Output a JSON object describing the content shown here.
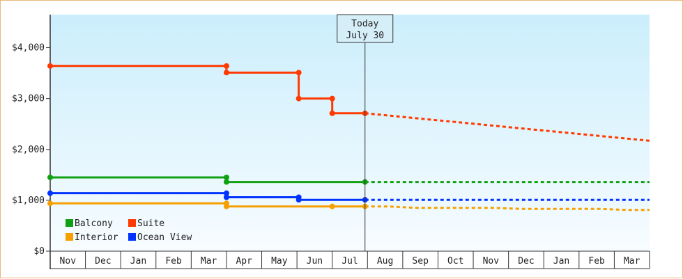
{
  "chart_data": {
    "type": "line",
    "yticks": [
      {
        "value": 0,
        "label": "$0"
      },
      {
        "value": 1000,
        "label": "$1,000"
      },
      {
        "value": 2000,
        "label": "$2,000"
      },
      {
        "value": 3000,
        "label": "$3,000"
      },
      {
        "value": 4000,
        "label": "$4,000"
      }
    ],
    "ylim": [
      0,
      4650
    ],
    "x_months": [
      "Nov",
      "Dec",
      "Jan",
      "Feb",
      "Mar",
      "Apr",
      "May",
      "Jun",
      "Jul",
      "Aug",
      "Sep",
      "Oct",
      "Nov",
      "Dec",
      "Jan",
      "Feb",
      "Mar"
    ],
    "xlim": [
      0,
      17
    ],
    "today": {
      "x": 8.93,
      "title": "Today",
      "date": "July 30"
    },
    "legend": {
      "position": "bottom-left"
    },
    "series": [
      {
        "name": "Balcony",
        "color": "#11a011",
        "points": [
          [
            0,
            1450
          ],
          [
            5,
            1450
          ],
          [
            5,
            1360
          ],
          [
            8.93,
            1360
          ]
        ],
        "markers": [
          [
            0,
            1450
          ],
          [
            5,
            1450
          ],
          [
            5,
            1360
          ],
          [
            8.93,
            1360
          ]
        ],
        "forecast": [
          [
            8.93,
            1360
          ],
          [
            17,
            1360
          ]
        ]
      },
      {
        "name": "Suite",
        "color": "#ff3a00",
        "points": [
          [
            0,
            3640
          ],
          [
            5,
            3640
          ],
          [
            5,
            3510
          ],
          [
            7.05,
            3510
          ],
          [
            7.05,
            3000
          ],
          [
            8.0,
            3000
          ],
          [
            8.0,
            2710
          ],
          [
            8.93,
            2710
          ]
        ],
        "markers": [
          [
            0,
            3640
          ],
          [
            5,
            3640
          ],
          [
            5,
            3510
          ],
          [
            7.05,
            3510
          ],
          [
            7.05,
            3000
          ],
          [
            8.0,
            3000
          ],
          [
            8.0,
            2710
          ],
          [
            8.93,
            2710
          ]
        ],
        "forecast": [
          [
            8.93,
            2710
          ],
          [
            17,
            2170
          ]
        ]
      },
      {
        "name": "Interior",
        "color": "#f5a000",
        "points": [
          [
            0,
            940
          ],
          [
            5,
            940
          ],
          [
            5,
            880
          ],
          [
            8.93,
            880
          ]
        ],
        "markers": [
          [
            0,
            940
          ],
          [
            5,
            940
          ],
          [
            5,
            880
          ],
          [
            8.0,
            880
          ],
          [
            8.93,
            880
          ]
        ],
        "forecast": [
          [
            8.93,
            880
          ],
          [
            9.6,
            880
          ],
          [
            10.4,
            850
          ],
          [
            12.6,
            850
          ],
          [
            13.4,
            830
          ],
          [
            15.6,
            830
          ],
          [
            16.4,
            810
          ],
          [
            17,
            810
          ]
        ]
      },
      {
        "name": "Ocean View",
        "color": "#0033ff",
        "points": [
          [
            0,
            1140
          ],
          [
            5,
            1140
          ],
          [
            5,
            1060
          ],
          [
            7.05,
            1060
          ],
          [
            7.05,
            1010
          ],
          [
            8.93,
            1010
          ]
        ],
        "markers": [
          [
            0,
            1140
          ],
          [
            5,
            1140
          ],
          [
            5,
            1060
          ],
          [
            7.05,
            1060
          ],
          [
            7.05,
            1010
          ],
          [
            8.93,
            1010
          ]
        ],
        "forecast": [
          [
            8.93,
            1010
          ],
          [
            17,
            1010
          ]
        ]
      }
    ]
  }
}
